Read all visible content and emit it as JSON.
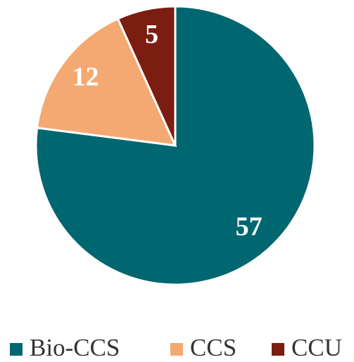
{
  "chart_data": {
    "type": "pie",
    "categories": [
      "Bio-CCS",
      "CCS",
      "CCU"
    ],
    "values": [
      57,
      12,
      5
    ],
    "colors": [
      "#006670",
      "#f4a972",
      "#7b1d11"
    ],
    "legend": "bottom"
  }
}
